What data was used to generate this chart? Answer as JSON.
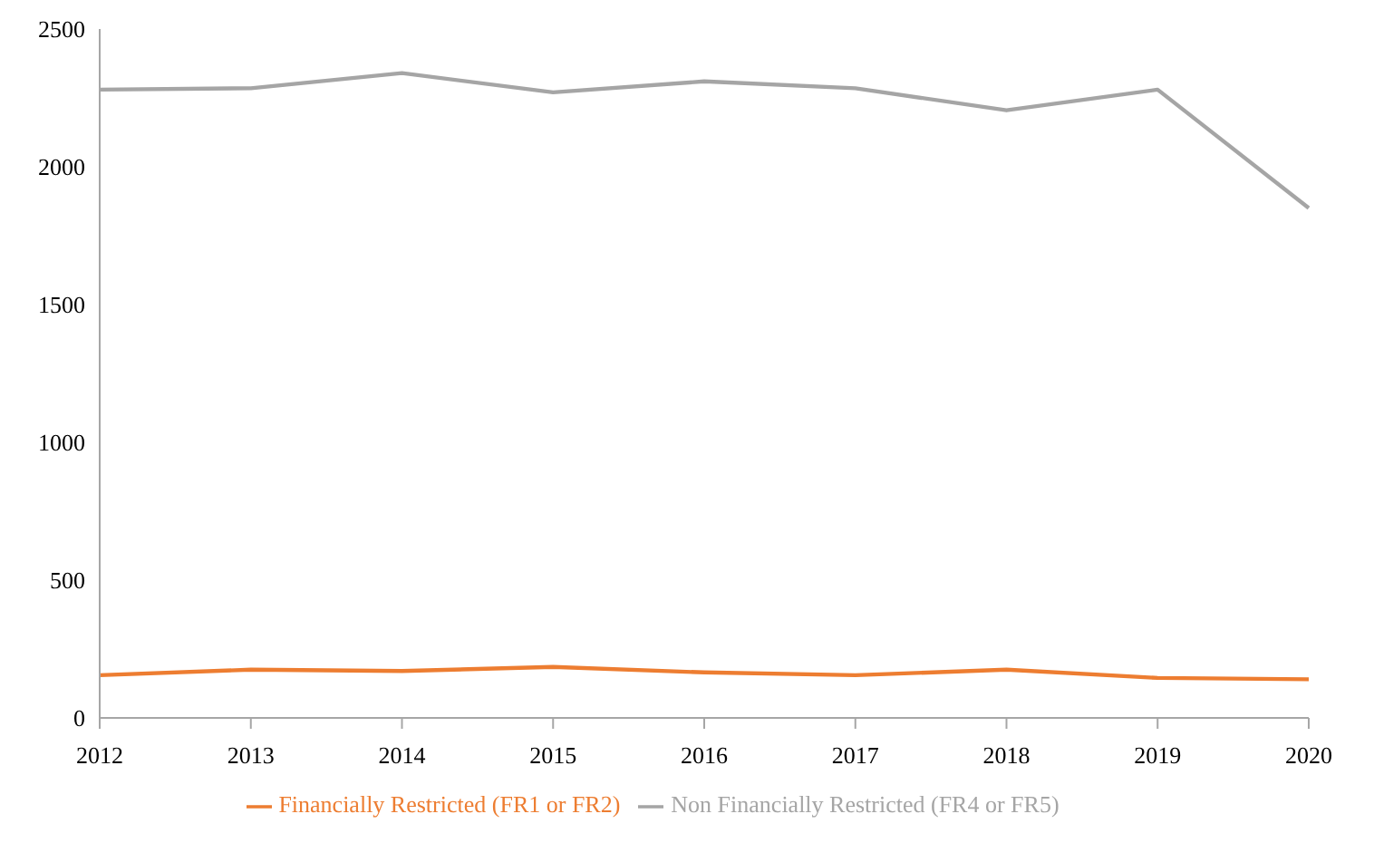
{
  "chart_data": {
    "type": "line",
    "categories": [
      "2012",
      "2013",
      "2014",
      "2015",
      "2016",
      "2017",
      "2018",
      "2019",
      "2020"
    ],
    "series": [
      {
        "name": "Financially Restricted (FR1 or FR2)",
        "color": "#ed7d31",
        "values": [
          155,
          175,
          170,
          185,
          165,
          155,
          175,
          145,
          140
        ]
      },
      {
        "name": "Non Financially Restricted (FR4 or FR5)",
        "color": "#a5a5a5",
        "values": [
          2280,
          2285,
          2340,
          2270,
          2310,
          2285,
          2205,
          2280,
          1850
        ]
      }
    ],
    "ylim": [
      0,
      2500
    ],
    "yticks": [
      0,
      500,
      1000,
      1500,
      2000,
      2500
    ],
    "legend": "bottom",
    "marker": "none"
  }
}
